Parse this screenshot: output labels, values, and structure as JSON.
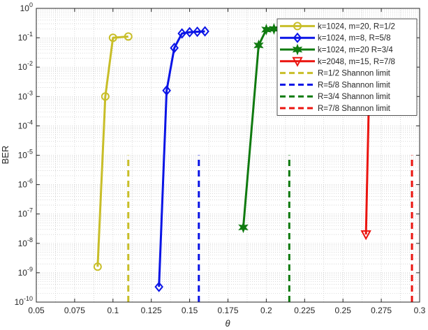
{
  "chart_data": {
    "type": "line",
    "xlabel": "θ",
    "ylabel": "BER",
    "xlim": [
      0.05,
      0.3
    ],
    "ylim_log10": [
      -10,
      0
    ],
    "y_scale": "log",
    "grid": "major and minor, dotted",
    "legend_position": "top-right",
    "x_ticks": [
      0.05,
      0.075,
      0.1,
      0.125,
      0.15,
      0.175,
      0.2,
      0.225,
      0.25,
      0.275,
      0.3
    ],
    "x_tick_labels": [
      "0.05",
      "0.075",
      "0.1",
      "0.125",
      "0.15",
      "0.175",
      "0.2",
      "0.225",
      "0.25",
      "0.275",
      "0.3"
    ],
    "y_tick_exponents": [
      -10,
      -9,
      -8,
      -7,
      -6,
      -5,
      -4,
      -3,
      -2,
      -1,
      0
    ],
    "y_tick_base": "10",
    "series": [
      {
        "name": "k=1024, m=20, R=1/2",
        "color": "#C8BE28",
        "marker": "circle",
        "x": [
          0.09,
          0.095,
          0.1,
          0.11
        ],
        "y": [
          1.6e-09,
          0.001,
          0.1,
          0.11
        ]
      },
      {
        "name": "k=1024, m=8, R=5/8",
        "color": "#0A14E6",
        "marker": "diamond",
        "x": [
          0.13,
          0.135,
          0.14,
          0.145,
          0.15,
          0.155,
          0.16
        ],
        "y": [
          3.3e-10,
          0.0016,
          0.045,
          0.14,
          0.155,
          0.16,
          0.165
        ]
      },
      {
        "name": "k=1024, m=20 R=3/4",
        "color": "#0F7A0F",
        "marker": "hexagram",
        "x": [
          0.185,
          0.195,
          0.2,
          0.205
        ],
        "y": [
          3.5e-08,
          0.055,
          0.19,
          0.2
        ]
      },
      {
        "name": "k=2048, m=15, R=7/8",
        "color": "#EB140F",
        "marker": "triangle-down",
        "x": [
          0.265,
          0.267
        ],
        "y": [
          2e-08,
          0.0012
        ]
      },
      {
        "name": "R=1/2 Shannon limit",
        "color": "#C8BE28",
        "dashed": true,
        "x": [
          0.11,
          0.11
        ],
        "y": [
          1e-10,
          1e-05
        ]
      },
      {
        "name": "R=5/8 Shannon limit",
        "color": "#0A14E6",
        "dashed": true,
        "x": [
          0.156,
          0.156
        ],
        "y": [
          1e-10,
          1e-05
        ]
      },
      {
        "name": "R=3/4 Shannon limit",
        "color": "#0F7A0F",
        "dashed": true,
        "x": [
          0.215,
          0.215
        ],
        "y": [
          1e-10,
          1e-05
        ]
      },
      {
        "name": "R=7/8 Shannon limit",
        "color": "#EB140F",
        "dashed": true,
        "x": [
          0.295,
          0.295
        ],
        "y": [
          1e-10,
          1e-05
        ]
      }
    ]
  }
}
